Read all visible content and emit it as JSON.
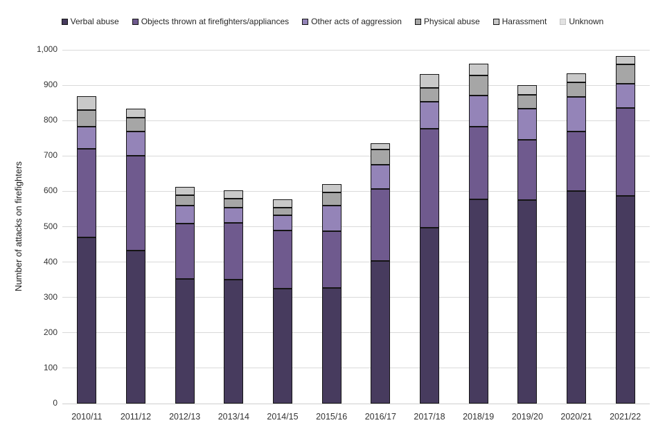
{
  "chart_data": {
    "type": "stacked-bar",
    "title": "",
    "xlabel": "",
    "ylabel": "Number of attacks on firefighters",
    "ylim": [
      0,
      1000
    ],
    "ytick_step": 100,
    "ytick_labels": [
      "0",
      "100",
      "200",
      "300",
      "400",
      "500",
      "600",
      "700",
      "800",
      "900",
      "1,000"
    ],
    "grid": true,
    "legend_position": "top",
    "background_color": "#ffffff",
    "gridline_color": "#d9d9d9",
    "segment_border_color": "#141414",
    "categories": [
      "2010/11",
      "2011/12",
      "2012/13",
      "2013/14",
      "2014/15",
      "2015/16",
      "2016/17",
      "2017/18",
      "2018/19",
      "2019/20",
      "2020/21",
      "2021/22"
    ],
    "series": [
      {
        "name": "Verbal abuse",
        "color": "#473b5e",
        "values": [
          470,
          433,
          352,
          350,
          324,
          326,
          403,
          497,
          577,
          575,
          601,
          588
        ]
      },
      {
        "name": "Objects thrown at firefighters/appliances",
        "color": "#6f5a8e",
        "values": [
          251,
          268,
          156,
          160,
          165,
          161,
          204,
          280,
          205,
          171,
          168,
          248
        ]
      },
      {
        "name": "Other acts of aggression",
        "color": "#9484b8",
        "values": [
          61,
          69,
          52,
          44,
          44,
          73,
          68,
          76,
          88,
          87,
          98,
          68
        ]
      },
      {
        "name": "Physical abuse",
        "color": "#a6a6a6",
        "values": [
          48,
          38,
          30,
          26,
          21,
          36,
          43,
          39,
          57,
          40,
          42,
          55
        ]
      },
      {
        "name": "Harassment",
        "color": "#c9c9c9",
        "values": [
          39,
          25,
          23,
          23,
          24,
          24,
          17,
          40,
          34,
          27,
          25,
          24
        ]
      },
      {
        "name": "Unknown",
        "color": "#e2e2e2",
        "swatch_border": "#c4c4c4",
        "values": [
          0,
          0,
          0,
          0,
          0,
          0,
          0,
          0,
          0,
          0,
          0,
          0
        ]
      }
    ]
  }
}
